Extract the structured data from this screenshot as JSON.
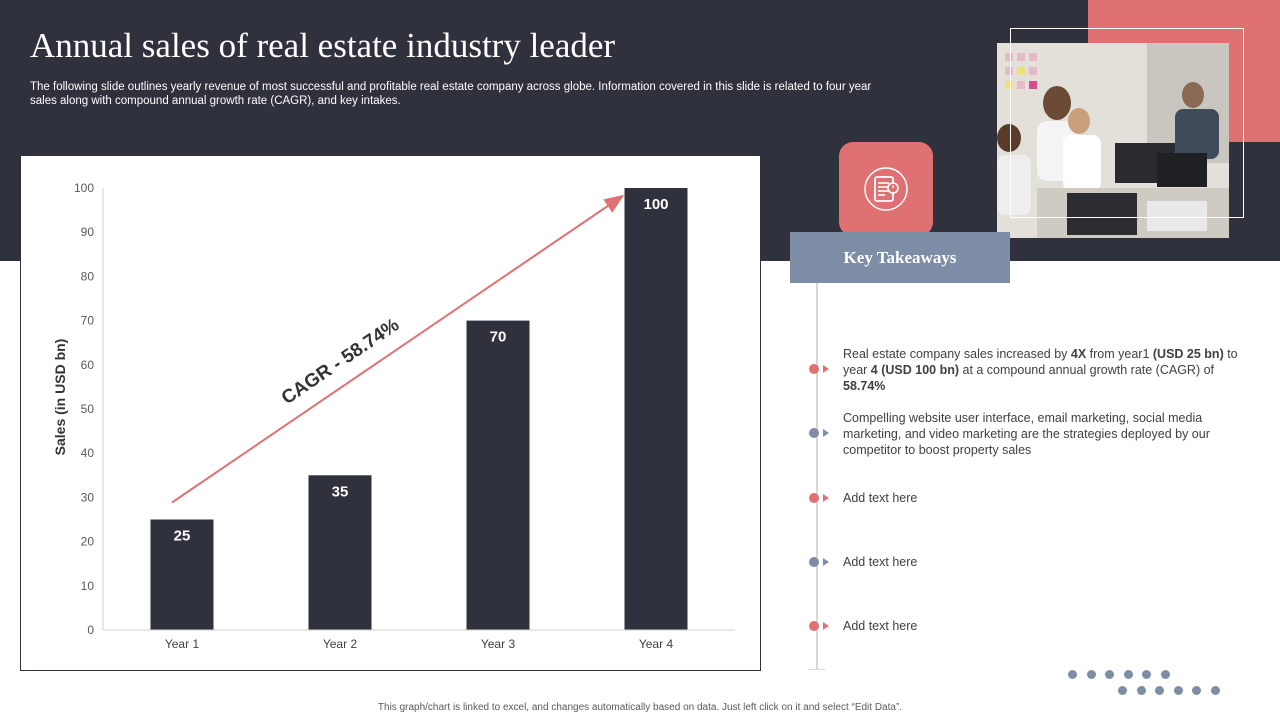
{
  "page": {
    "title": "Annual sales of real estate industry leader",
    "subtitle": "The following slide outlines yearly revenue of most successful and profitable real estate company across globe. Information covered in this slide is related to four year sales along with compound annual growth rate (CAGR), and key intakes.",
    "footnote": "This graph/chart is linked to excel, and changes automatically based on data. Just left click on it and select “Edit Data”."
  },
  "colors": {
    "dark_band": "#2f313d",
    "bar": "#2f313d",
    "accent_coral": "#e07173",
    "accent_blue": "#7d8da6"
  },
  "chart_data": {
    "type": "bar",
    "categories": [
      "Year 1",
      "Year 2",
      "Year 3",
      "Year 4"
    ],
    "values": [
      25,
      35,
      70,
      100
    ],
    "data_labels": [
      "25",
      "35",
      "70",
      "100"
    ],
    "ylabel": "Sales (in USD bn)",
    "xlabel": "",
    "ylim": [
      0,
      100
    ],
    "yticks": [
      0,
      10,
      20,
      30,
      40,
      50,
      60,
      70,
      80,
      90,
      100
    ],
    "grid": false,
    "annotation": {
      "text": "CAGR - 58.74%",
      "type": "trend-arrow",
      "color": "#e07173"
    }
  },
  "takeaways": {
    "header": "Key Takeaways",
    "icon": "document-clipboard-icon",
    "items": [
      {
        "dot_color": "#e07173",
        "parts": [
          {
            "text": "Real estate company sales increased by ",
            "bold": false
          },
          {
            "text": "4X",
            "bold": true
          },
          {
            "text": " from year1 ",
            "bold": false
          },
          {
            "text": "(USD 25 bn)",
            "bold": true
          },
          {
            "text": " to year ",
            "bold": false
          },
          {
            "text": "4 (USD 100 bn)",
            "bold": true
          },
          {
            "text": " at a compound annual growth rate (CAGR) of ",
            "bold": false
          },
          {
            "text": "58.74%",
            "bold": true
          }
        ]
      },
      {
        "dot_color": "#7d8da6",
        "parts": [
          {
            "text": "Compelling website user interface, email marketing, social media marketing, and video  marketing are the strategies deployed by our competitor to boost property  sales",
            "bold": false
          }
        ]
      },
      {
        "dot_color": "#e07173",
        "parts": [
          {
            "text": "Add text here",
            "bold": false
          }
        ]
      },
      {
        "dot_color": "#7d8da6",
        "parts": [
          {
            "text": "Add text here",
            "bold": false
          }
        ]
      },
      {
        "dot_color": "#e07173",
        "parts": [
          {
            "text": "Add text here",
            "bold": false
          }
        ]
      }
    ]
  },
  "photo": {
    "icon": "office-team-photo"
  }
}
